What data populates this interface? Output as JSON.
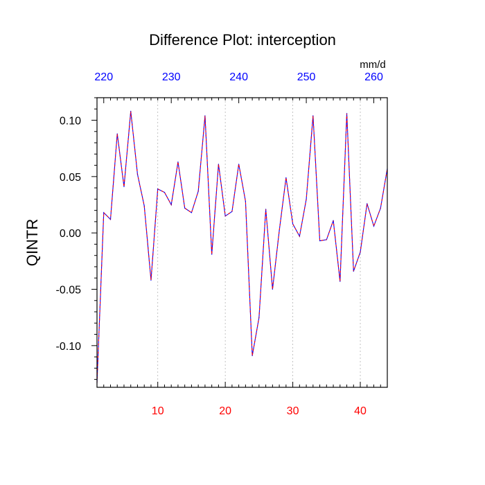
{
  "chart_data": {
    "type": "line",
    "title": "Difference Plot: interception",
    "ylabel": "QINTR",
    "units_label": "mm/d",
    "xlim": [
      1,
      44
    ],
    "ylim": [
      -0.137,
      0.12
    ],
    "bottom_axis": {
      "ticks": [
        10,
        20,
        30,
        40
      ],
      "labels": [
        "10",
        "20",
        "30",
        "40"
      ],
      "label_color": "#ff0000"
    },
    "top_axis": {
      "ticks": [
        2,
        12,
        22,
        32,
        42
      ],
      "labels": [
        "220",
        "230",
        "240",
        "250",
        "260"
      ],
      "label_color": "#0000ff"
    },
    "y_ticks": [
      -0.1,
      -0.05,
      0.0,
      0.05,
      0.1
    ],
    "y_tick_labels": [
      "-0.10",
      "-0.05",
      "0.00",
      "0.05",
      "0.10"
    ],
    "grid": {
      "vertical": true,
      "at": [
        10,
        20,
        30,
        40
      ],
      "style": "dotted"
    },
    "series": [
      {
        "color": "#0000ff",
        "dash_color": "#ff0000",
        "x": [
          1,
          2,
          3,
          4,
          5,
          6,
          7,
          8,
          9,
          10,
          11,
          12,
          13,
          14,
          15,
          16,
          17,
          18,
          19,
          20,
          21,
          22,
          23,
          24,
          25,
          26,
          27,
          28,
          29,
          30,
          31,
          32,
          33,
          34,
          35,
          36,
          37,
          38,
          39,
          40,
          41,
          42,
          43,
          44
        ],
        "values": [
          -0.133,
          0.018,
          0.012,
          0.088,
          0.041,
          0.108,
          0.052,
          0.024,
          -0.042,
          0.039,
          0.036,
          0.025,
          0.063,
          0.022,
          0.018,
          0.037,
          0.104,
          -0.019,
          0.061,
          0.015,
          0.019,
          0.061,
          0.028,
          -0.109,
          -0.075,
          0.021,
          -0.05,
          0.002,
          0.049,
          0.008,
          -0.003,
          0.03,
          0.104,
          -0.007,
          -0.006,
          0.011,
          -0.043,
          0.106,
          -0.034,
          -0.017,
          0.026,
          0.006,
          0.022,
          0.057
        ]
      }
    ]
  }
}
